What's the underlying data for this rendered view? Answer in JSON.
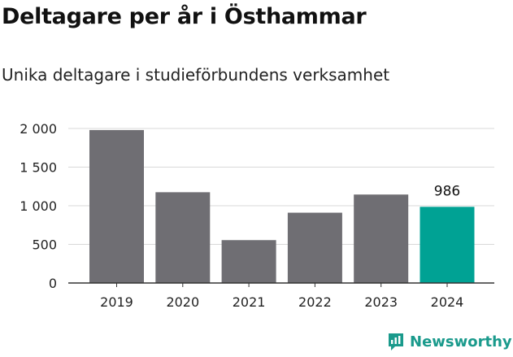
{
  "title": "Deltagare per år i Östhammar",
  "subtitle": "Unika deltagare i studieförbundens verksamhet",
  "brand": {
    "name": "Newsworthy",
    "logo_icon": "newsworthy-logo-icon",
    "color": "#1a9a8c"
  },
  "chart_data": {
    "type": "bar",
    "categories": [
      "2019",
      "2020",
      "2021",
      "2022",
      "2023",
      "2024"
    ],
    "values": [
      1980,
      1175,
      555,
      910,
      1145,
      986
    ],
    "ylim": [
      0,
      2000
    ],
    "yticks": [
      0,
      500,
      1000,
      1500,
      2000
    ],
    "ytick_labels": [
      "0",
      "500",
      "1 000",
      "1 500",
      "2 000"
    ],
    "grid": true,
    "bar_colors": [
      "#6f6e73",
      "#6f6e73",
      "#6f6e73",
      "#6f6e73",
      "#6f6e73",
      "#00a294"
    ],
    "data_labels": [
      null,
      null,
      null,
      null,
      null,
      "986"
    ],
    "xlabel": "",
    "ylabel": ""
  }
}
